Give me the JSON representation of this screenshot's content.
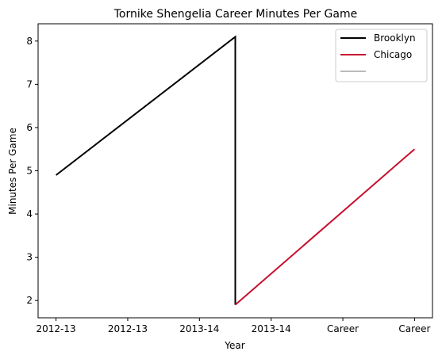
{
  "chart_data": {
    "type": "line",
    "title": "Tornike Shengelia Career Minutes Per Game",
    "xlabel": "Year",
    "ylabel": "Minutes Per Game",
    "x_tick_labels": [
      "2012-13",
      "2012-13",
      "2013-14",
      "2013-14",
      "Career",
      "Career"
    ],
    "x_range": [
      -0.25,
      5.25
    ],
    "ylim": [
      1.6,
      8.4
    ],
    "y_ticks": [
      2,
      3,
      4,
      5,
      6,
      7,
      8
    ],
    "grid": false,
    "legend_position": "top-right",
    "series": [
      {
        "name": "Brooklyn",
        "color": "#000000",
        "points": [
          {
            "x": 0,
            "y": 4.9
          },
          {
            "x": 2.5,
            "y": 8.1
          },
          {
            "x": 2.5,
            "y": 1.9
          }
        ]
      },
      {
        "name": "Chicago",
        "color": "#c8102e",
        "points": [
          {
            "x": 2.5,
            "y": 1.9
          },
          {
            "x": 5,
            "y": 5.5
          }
        ]
      },
      {
        "name": "",
        "color": "#bababa",
        "points": []
      }
    ]
  }
}
